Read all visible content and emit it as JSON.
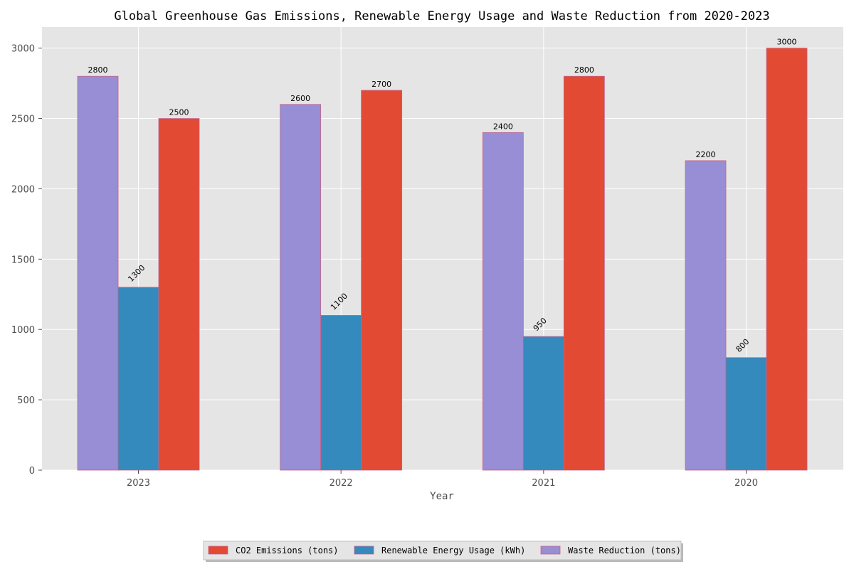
{
  "chart_data": {
    "type": "bar",
    "title": "Global Greenhouse Gas Emissions, Renewable Energy Usage and Waste Reduction from 2020-2023",
    "xlabel": "Year",
    "ylabel": "",
    "categories": [
      "2023",
      "2022",
      "2021",
      "2020"
    ],
    "ylim": [
      0,
      3150
    ],
    "yticks": [
      0,
      500,
      1000,
      1500,
      2000,
      2500,
      3000
    ],
    "grid": true,
    "legend_position": "bottom-center",
    "series": [
      {
        "name": "Waste Reduction (tons)",
        "values": [
          2800,
          2600,
          2400,
          2200
        ],
        "color": "#988ed5"
      },
      {
        "name": "Renewable Energy Usage (kWh)",
        "values": [
          1300,
          1100,
          950,
          800
        ],
        "color": "#348abd"
      },
      {
        "name": "CO2 Emissions (tons)",
        "values": [
          2500,
          2700,
          2800,
          3000
        ],
        "color": "#e24a33"
      }
    ],
    "legend_order": [
      "CO2 Emissions (tons)",
      "Renewable Energy Usage (kWh)",
      "Waste Reduction (tons)"
    ],
    "rotated_label_series": "Renewable Energy Usage (kWh)",
    "colors": {
      "plot_background": "#e5e5e5",
      "grid": "#ffffff",
      "bar_edge": "#c0658a"
    }
  }
}
